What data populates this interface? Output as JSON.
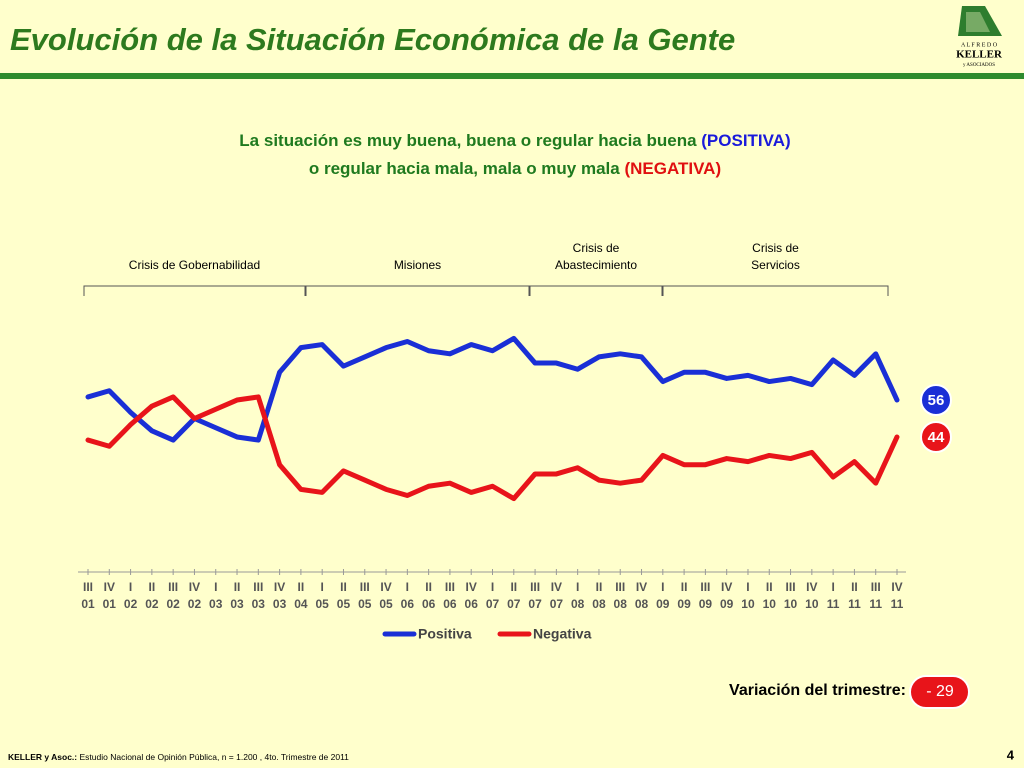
{
  "header": {
    "title": "Evolución de la Situación Económica de la Gente",
    "logo": [
      "A L F R E D O",
      "KELLER",
      "y  ASOCIADOS"
    ]
  },
  "subtitle": {
    "line1": [
      {
        "text": "La situación es muy buena, buena o regular hacia buena ",
        "color": "#1f7a1f"
      },
      {
        "text": "(POSITIVA)",
        "color": "#1a1adb"
      }
    ],
    "line2": [
      {
        "text": "o regular hacia mala, mala o muy mala ",
        "color": "#1f7a1f"
      },
      {
        "text": "(NEGATIVA)",
        "color": "#e01010"
      }
    ]
  },
  "periods": [
    [
      "Crisis de Gobernabilidad"
    ],
    [
      "Misiones"
    ],
    [
      "Crisis de",
      "Abastecimiento"
    ],
    [
      "Crisis de",
      "Servicios"
    ]
  ],
  "chart_data": {
    "type": "line",
    "categories": [
      [
        "III",
        "01"
      ],
      [
        "IV",
        "01"
      ],
      [
        "I",
        "02"
      ],
      [
        "II",
        "02"
      ],
      [
        "III",
        "02"
      ],
      [
        "IV",
        "02"
      ],
      [
        "I",
        "03"
      ],
      [
        "II",
        "03"
      ],
      [
        "III",
        "03"
      ],
      [
        "IV",
        "03"
      ],
      [
        "II",
        "04"
      ],
      [
        "I",
        "05"
      ],
      [
        "II",
        "05"
      ],
      [
        "III",
        "05"
      ],
      [
        "IV",
        "05"
      ],
      [
        "I",
        "06"
      ],
      [
        "II",
        "06"
      ],
      [
        "III",
        "06"
      ],
      [
        "IV",
        "06"
      ],
      [
        "I",
        "07"
      ],
      [
        "II",
        "07"
      ],
      [
        "III",
        "07"
      ],
      [
        "IV",
        "07"
      ],
      [
        "I",
        "08"
      ],
      [
        "II",
        "08"
      ],
      [
        "III",
        "08"
      ],
      [
        "IV",
        "08"
      ],
      [
        "I",
        "09"
      ],
      [
        "II",
        "09"
      ],
      [
        "III",
        "09"
      ],
      [
        "IV",
        "09"
      ],
      [
        "I",
        "10"
      ],
      [
        "II",
        "10"
      ],
      [
        "III",
        "10"
      ],
      [
        "IV",
        "10"
      ],
      [
        "I",
        "11"
      ],
      [
        "II",
        "11"
      ],
      [
        "III",
        "11"
      ],
      [
        "IV",
        "11"
      ]
    ],
    "series": [
      {
        "name": "Positiva",
        "color": "#1a2fd6",
        "values": [
          57,
          59,
          52,
          46,
          43,
          50,
          47,
          44,
          43,
          65,
          73,
          74,
          67,
          70,
          73,
          75,
          72,
          71,
          74,
          72,
          76,
          68,
          68,
          66,
          70,
          71,
          70,
          62,
          65,
          65,
          63,
          64,
          62,
          63,
          61,
          69,
          64,
          71,
          56
        ]
      },
      {
        "name": "Negativa",
        "color": "#e8141a",
        "values": [
          43,
          41,
          48,
          54,
          57,
          50,
          53,
          56,
          57,
          35,
          27,
          26,
          33,
          30,
          27,
          25,
          28,
          29,
          26,
          28,
          24,
          32,
          32,
          34,
          30,
          29,
          30,
          38,
          35,
          35,
          37,
          36,
          38,
          37,
          39,
          31,
          36,
          29,
          44
        ]
      }
    ]
  },
  "variation": {
    "label": "Variación del trimestre:",
    "value": "- 29"
  },
  "footer": {
    "source_bold": "KELLER y Asoc.:",
    "source": " Estudio Nacional de Opinión Pública, n = 1.200 , 4to. Trimestre de 2011",
    "page": "4"
  }
}
